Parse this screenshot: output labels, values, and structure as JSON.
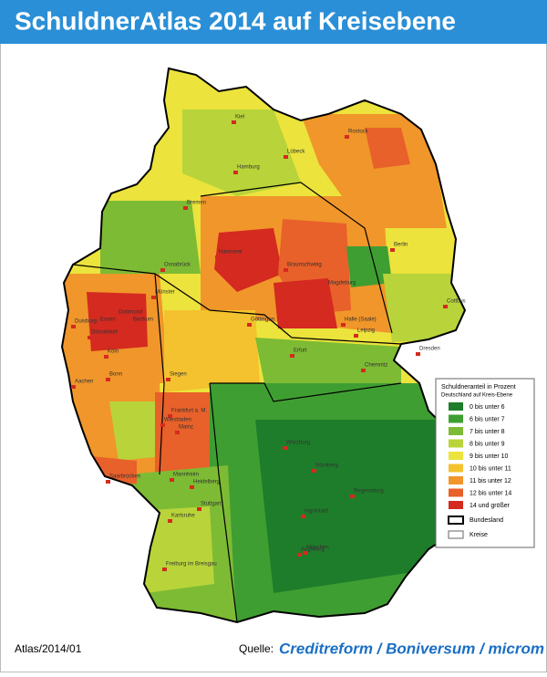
{
  "header": {
    "title": "SchuldnerAtlas 2014 auf Kreisebene"
  },
  "legend": {
    "title": "Schuldneranteil in Prozent",
    "subtitle": "Deutschland auf Kreis-Ebene",
    "items": [
      {
        "label": "0 bis unter 6",
        "color": "#1e7d2a"
      },
      {
        "label": "6 bis unter 7",
        "color": "#3f9e32"
      },
      {
        "label": "7 bis unter 8",
        "color": "#7dbb34"
      },
      {
        "label": "8 bis unter 9",
        "color": "#b8d43a"
      },
      {
        "label": "9 bis unter 10",
        "color": "#ece33c"
      },
      {
        "label": "10 bis unter 11",
        "color": "#f4c22e"
      },
      {
        "label": "11 bis unter 12",
        "color": "#f0962a"
      },
      {
        "label": "12 bis unter 14",
        "color": "#e8602a"
      },
      {
        "label": "14 und größer",
        "color": "#d42a20"
      }
    ],
    "borders": [
      "Bundesland",
      "Kreise"
    ]
  },
  "cities": [
    "Kiel",
    "Rostock",
    "Lübeck",
    "Hamburg",
    "Bremen",
    "Berlin",
    "Hannover",
    "Osnabrück",
    "Braunschweig",
    "Magdeburg",
    "Münster",
    "Dortmund",
    "Essen",
    "Bochum",
    "Duisburg",
    "Düsseldorf",
    "Köln",
    "Göttingen",
    "Halle (Saale)",
    "Leipzig",
    "Cottbus",
    "Dresden",
    "Erfurt",
    "Chemnitz",
    "Aachen",
    "Bonn",
    "Siegen",
    "Frankfurt a. M.",
    "Wiesbaden",
    "Mainz",
    "Würzburg",
    "Nürnberg",
    "Regensburg",
    "Mannheim",
    "Heidelberg",
    "Saarbrücken",
    "Karlsruhe",
    "Stuttgart",
    "Ingolstadt",
    "Augsburg",
    "München",
    "Freiburg im Breisgau"
  ],
  "footer": {
    "id": "Atlas/2014/01",
    "source_label": "Quelle:",
    "source": "Creditreform / Boniversum / microm"
  }
}
